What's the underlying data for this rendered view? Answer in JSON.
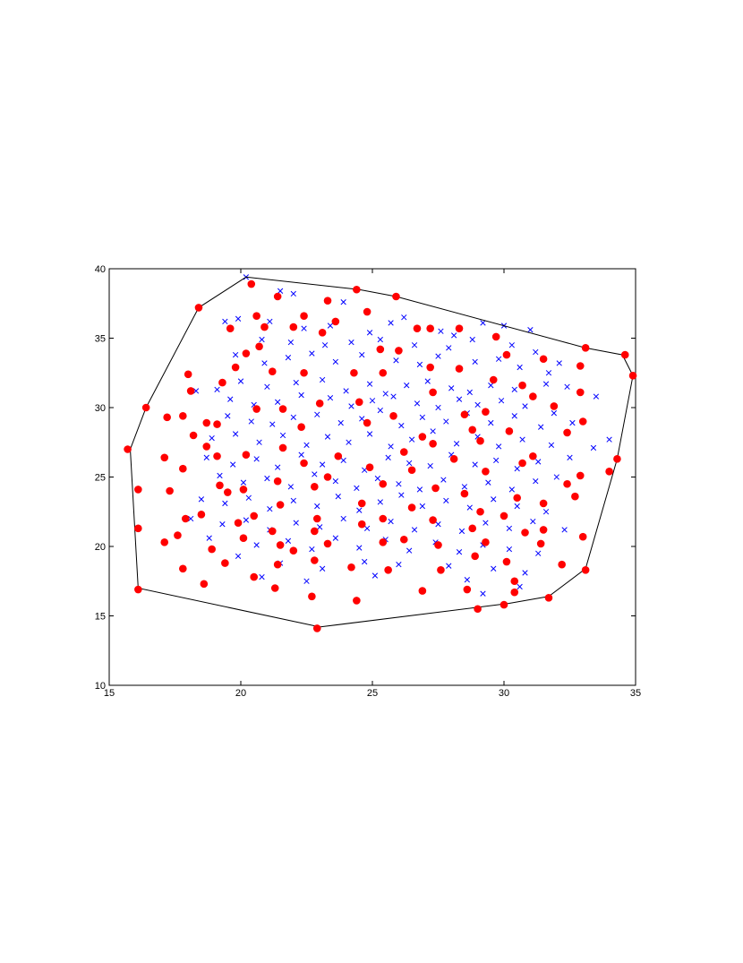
{
  "chart_data": {
    "type": "scatter",
    "xlim": [
      15,
      35
    ],
    "ylim": [
      10,
      40
    ],
    "xticks": [
      15,
      20,
      25,
      30,
      35
    ],
    "yticks": [
      10,
      15,
      20,
      25,
      30,
      35,
      40
    ],
    "series": [
      {
        "color": "#0000ff",
        "marker": "x",
        "x": [
          20.2,
          21.5,
          22,
          23.9,
          19.4,
          19.9,
          21.1,
          22.4,
          23.4,
          24.9,
          25.7,
          26.2,
          27.6,
          28.1,
          29.2,
          30,
          31,
          20.8,
          21.9,
          23.2,
          24.2,
          25.3,
          26.6,
          27.9,
          28.8,
          30.3,
          31.2,
          19.8,
          20.9,
          21.8,
          22.7,
          23.6,
          24.6,
          25.9,
          26.8,
          27.5,
          28.9,
          29.8,
          30.6,
          31.7,
          32.1,
          19.1,
          20,
          21,
          22.1,
          23.1,
          24,
          24.9,
          25.5,
          26.3,
          27.1,
          28,
          28.7,
          29.5,
          30.4,
          31.6,
          32.4,
          33.5,
          18.3,
          19.6,
          20.5,
          21.4,
          22.3,
          23.4,
          24.2,
          25,
          25.8,
          26.7,
          27.5,
          28.3,
          29,
          29.9,
          30.8,
          31.9,
          19.5,
          20.4,
          21.2,
          22,
          22.9,
          23.8,
          24.6,
          25.3,
          26.1,
          26.9,
          27.8,
          28.6,
          29.5,
          30.4,
          31.4,
          32.6,
          18.9,
          19.8,
          20.7,
          21.6,
          22.5,
          23.3,
          24.1,
          24.9,
          25.7,
          26.5,
          27.3,
          28.2,
          29,
          29.8,
          30.7,
          31.8,
          33.4,
          34,
          18.7,
          19.7,
          20.6,
          21.4,
          22.3,
          23.1,
          23.9,
          24.7,
          25.6,
          26.4,
          27.2,
          28,
          28.9,
          29.7,
          30.5,
          31.3,
          32.5,
          19.2,
          20.1,
          21,
          21.9,
          22.8,
          23.6,
          24.4,
          25.2,
          26,
          26.8,
          27.7,
          28.5,
          29.4,
          30.3,
          31.2,
          32,
          18.5,
          19.4,
          20.3,
          21.1,
          22,
          22.9,
          23.7,
          24.5,
          25.3,
          26.1,
          26.9,
          27.8,
          28.7,
          29.6,
          30.5,
          31.6,
          18.1,
          19.3,
          20.2,
          21.1,
          22.1,
          23,
          23.9,
          24.8,
          25.7,
          26.6,
          27.5,
          28.4,
          29.3,
          30.2,
          31.1,
          32.3,
          18.8,
          20.6,
          21.8,
          22.7,
          23.6,
          24.5,
          25.5,
          26.4,
          27.4,
          28.3,
          29.2,
          30.2,
          31.3,
          19.9,
          21.5,
          23.1,
          24.7,
          26,
          27.9,
          29.6,
          30.8,
          20.8,
          22.5,
          25.1,
          28.6,
          30.6,
          29.2
        ],
        "y": [
          39.4,
          38.4,
          38.2,
          37.6,
          36.2,
          36.4,
          36.2,
          35.7,
          35.9,
          35.4,
          36.1,
          36.5,
          35.5,
          35.2,
          36.1,
          35.9,
          35.6,
          34.9,
          34.7,
          34.5,
          34.7,
          34.9,
          34.5,
          34.3,
          34.9,
          34.5,
          34,
          33.8,
          33.2,
          33.6,
          33.9,
          33.3,
          33.8,
          33.4,
          33.1,
          33.7,
          33.3,
          33.5,
          32.9,
          32.5,
          33.2,
          31.3,
          31.9,
          31.5,
          31.8,
          32,
          31.2,
          31.7,
          31,
          31.6,
          31.9,
          31.4,
          31.1,
          31.6,
          31.3,
          31.7,
          31.5,
          30.8,
          31.2,
          30.6,
          30.2,
          30.4,
          30.9,
          30.7,
          30.1,
          30.5,
          30.8,
          30.3,
          30,
          30.6,
          30.2,
          30.5,
          30.1,
          29.6,
          29.4,
          29,
          28.8,
          29.3,
          29.5,
          28.9,
          29.2,
          29.8,
          28.7,
          29.3,
          29,
          29.6,
          28.9,
          29.4,
          28.6,
          28.9,
          27.8,
          28.1,
          27.5,
          28,
          27.3,
          27.9,
          27.5,
          28.1,
          27.2,
          27.7,
          28.3,
          27.4,
          27.9,
          27.2,
          27.7,
          27.3,
          27.1,
          27.7,
          26.4,
          25.9,
          26.3,
          25.7,
          26.6,
          25.9,
          26.2,
          25.5,
          26.4,
          26,
          25.8,
          26.6,
          25.9,
          26.2,
          25.6,
          26.1,
          26.4,
          25.1,
          24.6,
          24.9,
          24.3,
          25.2,
          24.7,
          24.2,
          24.9,
          24.5,
          24.1,
          24.8,
          24.3,
          24.6,
          24.1,
          24.7,
          25,
          23.4,
          23.1,
          23.5,
          22.7,
          23.3,
          22.9,
          23.6,
          22.6,
          23.2,
          23.7,
          22.9,
          23.3,
          22.8,
          23.4,
          22.9,
          22.5,
          22,
          21.6,
          21.9,
          21.2,
          21.7,
          21.4,
          22,
          21.3,
          21.8,
          21.2,
          21.6,
          21.1,
          21.7,
          21.3,
          21.8,
          21.2,
          20.6,
          20.1,
          20.4,
          19.8,
          20.6,
          19.9,
          20.5,
          19.7,
          20.3,
          19.6,
          20.1,
          19.8,
          19.5,
          19.3,
          18.8,
          18.4,
          18.9,
          18.7,
          18.6,
          18.4,
          18.1,
          17.8,
          17.5,
          17.9,
          17.6,
          17.1,
          16.6
        ]
      },
      {
        "color": "#ff0000",
        "marker": "o",
        "x": [
          18.4,
          20.4,
          21.4,
          23.3,
          24.4,
          25.9,
          22.4,
          23.6,
          24.8,
          20.6,
          19.6,
          20.9,
          22,
          23.1,
          26.7,
          27.2,
          28.3,
          29.7,
          20.7,
          20.2,
          25.3,
          26,
          30.1,
          31.5,
          32.9,
          33.1,
          34.6,
          34.9,
          19.8,
          21.2,
          22.4,
          24.3,
          25.4,
          27.2,
          28.3,
          29.6,
          30.7,
          32.9,
          19.3,
          18,
          18.1,
          16.4,
          17.8,
          20.6,
          21.6,
          23,
          24.5,
          25.8,
          27.3,
          28.5,
          29.3,
          31.1,
          31.9,
          33,
          17.2,
          18.7,
          19.1,
          22.3,
          24.8,
          26.9,
          28.8,
          30.2,
          32.4,
          18.2,
          18.7,
          20.2,
          21.6,
          23.7,
          26.2,
          27.3,
          29.1,
          31.1,
          15.7,
          17.1,
          19.1,
          22.4,
          24.9,
          26.5,
          28.1,
          30.7,
          32.9,
          34,
          34.3,
          17.8,
          19.2,
          21.4,
          23.3,
          25.4,
          27.4,
          29.3,
          32.4,
          16.1,
          17.3,
          19.5,
          20.1,
          22.8,
          24.6,
          26.5,
          28.5,
          30.5,
          31.5,
          32.7,
          17.9,
          18.5,
          20.5,
          21.5,
          22.9,
          25.4,
          27.3,
          29.1,
          30,
          16.1,
          17.6,
          18.9,
          19.9,
          21.2,
          22.8,
          24.6,
          26.2,
          28.8,
          30.8,
          31.5,
          17.1,
          20.1,
          21.5,
          22,
          23.3,
          25.4,
          27.5,
          29.3,
          31.4,
          33,
          17.8,
          19.4,
          20.5,
          21.4,
          22.8,
          24.2,
          25.6,
          27.6,
          28.9,
          30.1,
          32.2,
          33.1,
          16.1,
          18.6,
          21.3,
          22.7,
          24.4,
          26.9,
          28.6,
          30.4,
          31.7,
          30.4,
          29,
          30,
          22.9
        ],
        "y": [
          37.2,
          38.9,
          38,
          37.7,
          38.5,
          38,
          36.6,
          36.2,
          36.9,
          36.6,
          35.7,
          35.8,
          35.8,
          35.4,
          35.7,
          35.7,
          35.7,
          35.1,
          34.4,
          33.9,
          34.2,
          34.1,
          33.8,
          33.5,
          33,
          34.3,
          33.8,
          32.3,
          32.9,
          32.6,
          32.5,
          32.5,
          32.5,
          32.9,
          32.8,
          32,
          31.6,
          31.1,
          31.8,
          32.4,
          31.2,
          30,
          29.4,
          29.9,
          29.9,
          30.3,
          30.4,
          29.4,
          31.1,
          29.5,
          29.7,
          30.8,
          30.1,
          29,
          29.3,
          28.9,
          28.8,
          28.6,
          28.9,
          27.9,
          28.4,
          28.3,
          28.2,
          28,
          27.2,
          26.6,
          27.1,
          26.5,
          26.8,
          27.4,
          27.6,
          26.5,
          27,
          26.4,
          26.5,
          26,
          25.7,
          25.5,
          26.3,
          26,
          25.1,
          25.4,
          26.3,
          25.6,
          24.4,
          24.7,
          25,
          24.5,
          24.2,
          25.4,
          24.5,
          24.1,
          24,
          23.9,
          24.1,
          24.3,
          23.1,
          22.8,
          23.8,
          23.5,
          23.1,
          23.6,
          22,
          22.3,
          22.2,
          23,
          22,
          22,
          21.9,
          22.5,
          22.2,
          21.3,
          20.8,
          19.8,
          21.7,
          21.1,
          21.1,
          21.6,
          20.5,
          21.3,
          21,
          21.2,
          20.3,
          20.6,
          20.1,
          19.7,
          20.2,
          20.3,
          20.1,
          20.3,
          20.2,
          20.7,
          18.4,
          18.8,
          17.8,
          18.7,
          19,
          18.5,
          18.3,
          18.3,
          19.3,
          18.9,
          18.7,
          18.3,
          16.9,
          17.3,
          17,
          16.4,
          16.1,
          16.8,
          16.9,
          17.5,
          16.3,
          16.7,
          15.5,
          15.8,
          14.1
        ]
      },
      {
        "color": "#000000",
        "marker": "line",
        "x": [
          15.8,
          16.1,
          23,
          30.2,
          31.7,
          33.1,
          34.3,
          34.9,
          34.5,
          33.1,
          25.9,
          24.5,
          20.2,
          18.4,
          16.4
        ],
        "y": [
          27,
          17,
          14.2,
          15.9,
          16.4,
          18.4,
          26.3,
          32.3,
          33.8,
          34.3,
          38,
          38.5,
          39.4,
          37.2,
          30
        ]
      }
    ]
  }
}
